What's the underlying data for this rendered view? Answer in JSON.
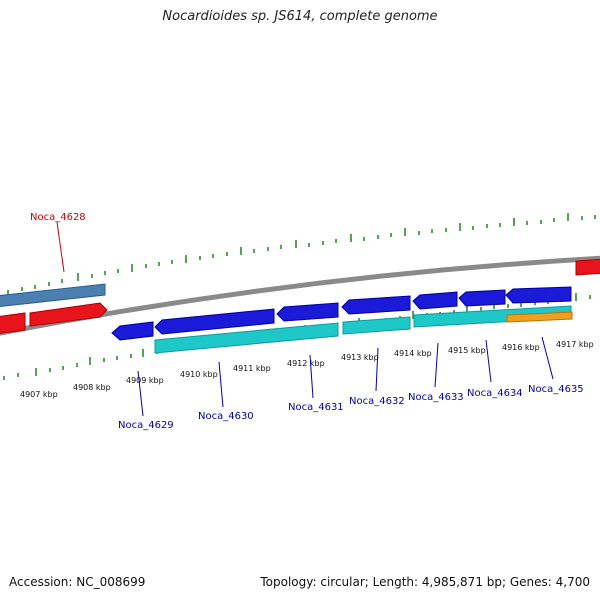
{
  "title": "Nocardioides sp. JS614, complete genome",
  "footer": {
    "accession": "Accession: NC_008699",
    "stats": "Topology: circular; Length: 4,985,871 bp; Genes: 4,700"
  },
  "colors": {
    "backbone": "#8a8a8a",
    "tick": "#2e8b2e",
    "cds_forward": "#e8141c",
    "cds_reverse": "#1a1ad8",
    "rna_forward": "#4a7fb0",
    "mrna_reverse": "#1fc8c8",
    "misc_reverse": "#f0a020",
    "label_forward": "#d40000",
    "label_reverse": "#0000b0"
  },
  "scale_labels": [
    "4907 kbp",
    "4908 kbp",
    "4909 kbp",
    "4910 kbp",
    "4911 kbp",
    "4912 kbp",
    "4913 kbp",
    "4914 kbp",
    "4915 kbp",
    "4916 kbp",
    "4917 kbp"
  ],
  "gene_labels": {
    "g4628": "Noca_4628",
    "g4629": "Noca_4629",
    "g4630": "Noca_4630",
    "g4631": "Noca_4631",
    "g4632": "Noca_4632",
    "g4633": "Noca_4633",
    "g4634": "Noca_4634",
    "g4635": "Noca_4635"
  }
}
